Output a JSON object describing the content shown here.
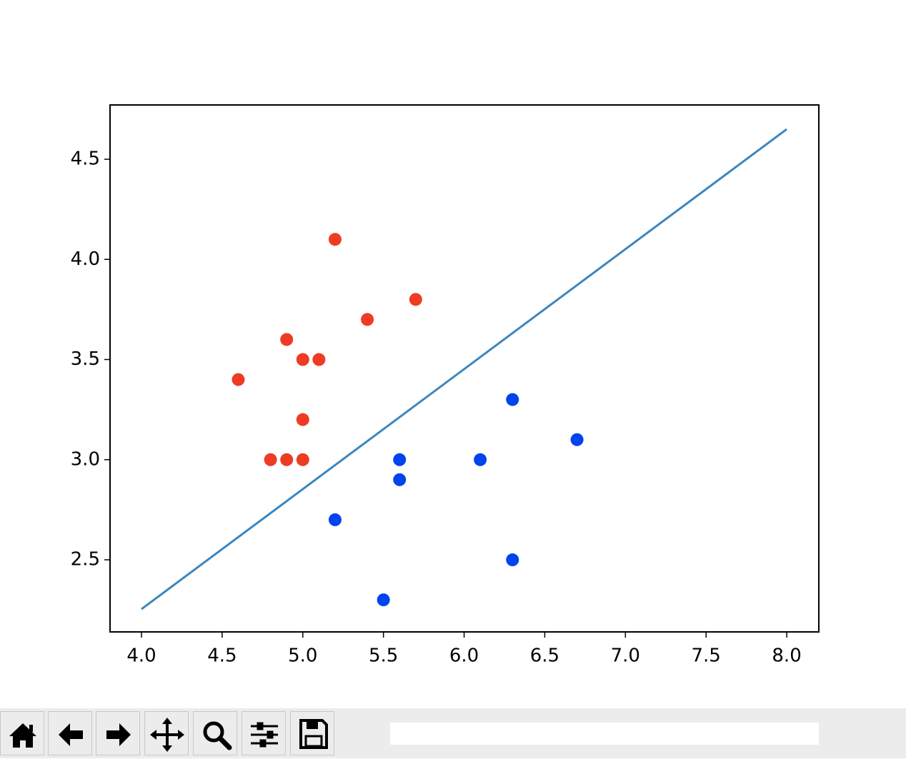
{
  "chart_data": {
    "type": "scatter",
    "xlim": [
      3.805,
      8.199
    ],
    "ylim": [
      2.14,
      4.771
    ],
    "xticks": [
      {
        "value": 4,
        "label": "4.0"
      },
      4.5,
      {
        "value": 5,
        "label": "5.0"
      },
      5.5,
      {
        "value": 6,
        "label": "6.0"
      },
      6.5,
      {
        "value": 7,
        "label": "7.0"
      },
      7.5,
      {
        "value": 8,
        "label": "8.0"
      }
    ],
    "yticks": [
      2.5,
      {
        "value": 3,
        "label": "3.0"
      },
      3.5,
      {
        "value": 4,
        "label": "4.0"
      },
      4.5
    ],
    "series": [
      {
        "type": "line",
        "color": "#3d86be",
        "x": [
          4,
          8
        ],
        "values": [
          2.254,
          4.65
        ]
      },
      {
        "type": "scatter",
        "color": "#ef3b24",
        "x": [
          4.6,
          4.8,
          4.9,
          4.9,
          5.0,
          5.0,
          5.0,
          5.1,
          5.2,
          5.4,
          5.7
        ],
        "values": [
          3.4,
          3.0,
          3.6,
          3.0,
          3.5,
          3.2,
          3.0,
          3.5,
          4.1,
          3.7,
          3.8
        ]
      },
      {
        "type": "scatter",
        "color": "#0044ee",
        "x": [
          5.2,
          5.5,
          5.6,
          5.6,
          6.1,
          6.3,
          6.3,
          6.7
        ],
        "values": [
          2.7,
          2.3,
          3.0,
          2.9,
          3.0,
          3.3,
          2.5,
          3.1
        ]
      }
    ]
  }
}
